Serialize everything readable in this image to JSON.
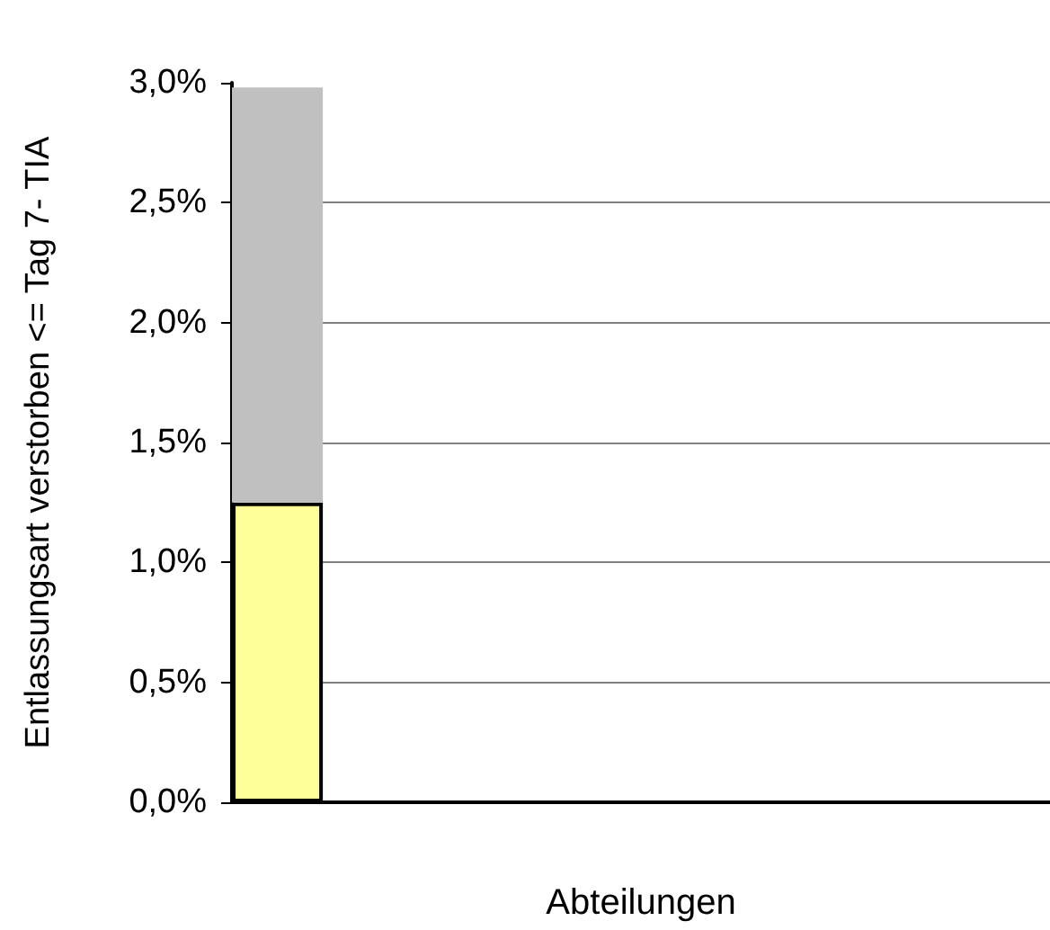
{
  "chart_data": {
    "type": "bar",
    "xlabel": "Abteilungen",
    "ylabel": "Entlassungsart verstorben <= Tag 7- TIA",
    "categories": [
      null,
      null,
      null,
      null,
      null,
      null,
      null,
      null,
      null
    ],
    "series": [
      {
        "color": "#ffff99",
        "values": [
          1.25,
          null,
          null,
          null,
          null,
          null,
          null,
          null,
          null
        ]
      },
      {
        "color": "#c0c0c0",
        "values": [
          1.73,
          null,
          null,
          null,
          null,
          null,
          null,
          null,
          null
        ]
      }
    ],
    "stacked": true,
    "ylim": [
      0,
      3
    ],
    "yticks": [
      {
        "value": 0,
        "label": "0,0%"
      },
      {
        "value": 0.5,
        "label": "0,5%"
      },
      {
        "value": 1,
        "label": "1,0%"
      },
      {
        "value": 1.5,
        "label": "1,5%"
      },
      {
        "value": 2,
        "label": "2,0%"
      },
      {
        "value": 2.5,
        "label": "2,5%"
      },
      {
        "value": 3,
        "label": "3,0%"
      }
    ],
    "grid": "y"
  }
}
